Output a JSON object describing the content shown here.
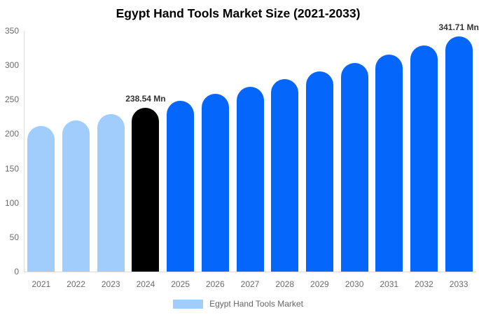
{
  "title": "Egypt Hand Tools Market Size (2021-2033)",
  "legend": {
    "label": "Egypt Hand Tools Market",
    "swatch_color": "#A0CDFB"
  },
  "colors": {
    "past_bar": "#A0CDFB",
    "highlight_bar": "#000000",
    "forecast_bar": "#0566FB",
    "axis_text": "#6b6b6b",
    "axis_line": "#dedede",
    "annotation_text": "#333333",
    "title_text": "#000000"
  },
  "chart_data": {
    "type": "bar",
    "title": "Egypt Hand Tools Market Size (2021-2033)",
    "xlabel": "",
    "ylabel": "",
    "unit": "Mn",
    "categories": [
      "2021",
      "2022",
      "2023",
      "2024",
      "2025",
      "2026",
      "2027",
      "2028",
      "2029",
      "2030",
      "2031",
      "2032",
      "2033"
    ],
    "series": [
      {
        "name": "Egypt Hand Tools Market",
        "values": [
          211.6,
          220.2,
          229.2,
          238.54,
          248.2,
          258.3,
          268.9,
          279.8,
          291.2,
          303.0,
          315.4,
          328.2,
          341.71
        ]
      }
    ],
    "bar_colors": [
      "#A0CDFB",
      "#A0CDFB",
      "#A0CDFB",
      "#000000",
      "#0566FB",
      "#0566FB",
      "#0566FB",
      "#0566FB",
      "#0566FB",
      "#0566FB",
      "#0566FB",
      "#0566FB",
      "#0566FB"
    ],
    "ylim": [
      0,
      350
    ],
    "yticks": [
      0,
      50,
      100,
      150,
      200,
      250,
      300,
      350
    ],
    "grid": false,
    "legend_position": "bottom",
    "annotations": [
      {
        "category": "2024",
        "index": 3,
        "text": "238.54 Mn"
      },
      {
        "category": "2033",
        "index": 12,
        "text": "341.71 Mn"
      }
    ]
  }
}
